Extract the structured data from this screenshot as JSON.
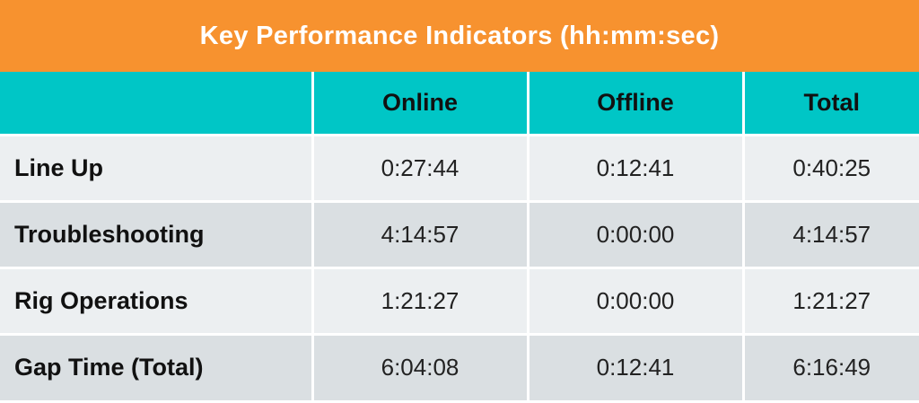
{
  "title": "Key Performance Indicators (hh:mm:sec)",
  "columns": [
    "",
    "Online",
    "Offline",
    "Total"
  ],
  "rows": [
    {
      "label": "Line Up",
      "online": "0:27:44",
      "offline": "0:12:41",
      "total": "0:40:25"
    },
    {
      "label": "Troubleshooting",
      "online": "4:14:57",
      "offline": "0:00:00",
      "total": "4:14:57"
    },
    {
      "label": "Rig Operations",
      "online": "1:21:27",
      "offline": "0:00:00",
      "total": "1:21:27"
    },
    {
      "label": "Gap Time (Total)",
      "online": "6:04:08",
      "offline": "0:12:41",
      "total": "6:16:49"
    }
  ],
  "colors": {
    "title_bg": "#f7922f",
    "header_bg": "#00c6c6",
    "row_light": "#eceff1",
    "row_dark": "#dadfe2"
  }
}
